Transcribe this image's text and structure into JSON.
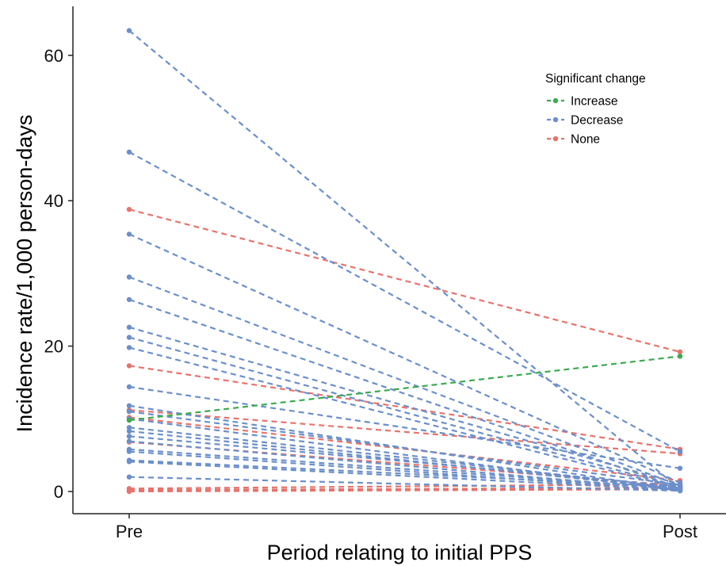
{
  "chart_data": {
    "type": "line",
    "xlabel": "Period relating to initial PPS",
    "ylabel": "Incidence rate/1,000 person-days",
    "categories": [
      "Pre",
      "Post"
    ],
    "ylim": [
      -3.2,
      66.5
    ],
    "yticks": [
      0,
      20,
      40,
      60
    ],
    "grid": false,
    "legend": {
      "title": "Significant change",
      "position": "top-right",
      "entries": [
        {
          "key": "Increase",
          "label": "Increase",
          "color": "#3aab4f"
        },
        {
          "key": "Decrease",
          "label": "Decrease",
          "color": "#6b8fcb"
        },
        {
          "key": "None",
          "label": "None",
          "color": "#e8736c"
        }
      ]
    },
    "series": [
      {
        "group": "Increase",
        "values": [
          9.8,
          18.6
        ]
      },
      {
        "group": "None",
        "values": [
          38.8,
          19.2
        ]
      },
      {
        "group": "None",
        "values": [
          17.3,
          5.8
        ]
      },
      {
        "group": "None",
        "values": [
          11.2,
          5.2
        ]
      },
      {
        "group": "None",
        "values": [
          10.2,
          1.5
        ]
      },
      {
        "group": "None",
        "values": [
          6.8,
          0.8
        ]
      },
      {
        "group": "None",
        "values": [
          0.4,
          1.0
        ]
      },
      {
        "group": "None",
        "values": [
          0.2,
          0.5
        ]
      },
      {
        "group": "None",
        "values": [
          0.0,
          0.3
        ]
      },
      {
        "group": "Decrease",
        "values": [
          63.4,
          0.3
        ]
      },
      {
        "group": "Decrease",
        "values": [
          46.7,
          5.5
        ]
      },
      {
        "group": "Decrease",
        "values": [
          35.4,
          1.2
        ]
      },
      {
        "group": "Decrease",
        "values": [
          29.5,
          0.8
        ]
      },
      {
        "group": "Decrease",
        "values": [
          26.4,
          0.5
        ]
      },
      {
        "group": "Decrease",
        "values": [
          22.6,
          1.0
        ]
      },
      {
        "group": "Decrease",
        "values": [
          21.2,
          0.6
        ]
      },
      {
        "group": "Decrease",
        "values": [
          19.8,
          0.4
        ]
      },
      {
        "group": "Decrease",
        "values": [
          14.4,
          3.2
        ]
      },
      {
        "group": "Decrease",
        "values": [
          11.8,
          0.2
        ]
      },
      {
        "group": "Decrease",
        "values": [
          11.0,
          0.9
        ]
      },
      {
        "group": "Decrease",
        "values": [
          10.0,
          0.1
        ]
      },
      {
        "group": "Decrease",
        "values": [
          8.8,
          0.5
        ]
      },
      {
        "group": "Decrease",
        "values": [
          8.3,
          0.3
        ]
      },
      {
        "group": "Decrease",
        "values": [
          7.6,
          0.7
        ]
      },
      {
        "group": "Decrease",
        "values": [
          6.9,
          0.2
        ]
      },
      {
        "group": "Decrease",
        "values": [
          5.8,
          0.4
        ]
      },
      {
        "group": "Decrease",
        "values": [
          5.5,
          0.1
        ]
      },
      {
        "group": "Decrease",
        "values": [
          4.3,
          0.6
        ]
      },
      {
        "group": "Decrease",
        "values": [
          4.1,
          0.2
        ]
      },
      {
        "group": "Decrease",
        "values": [
          2.0,
          0.1
        ]
      }
    ]
  }
}
